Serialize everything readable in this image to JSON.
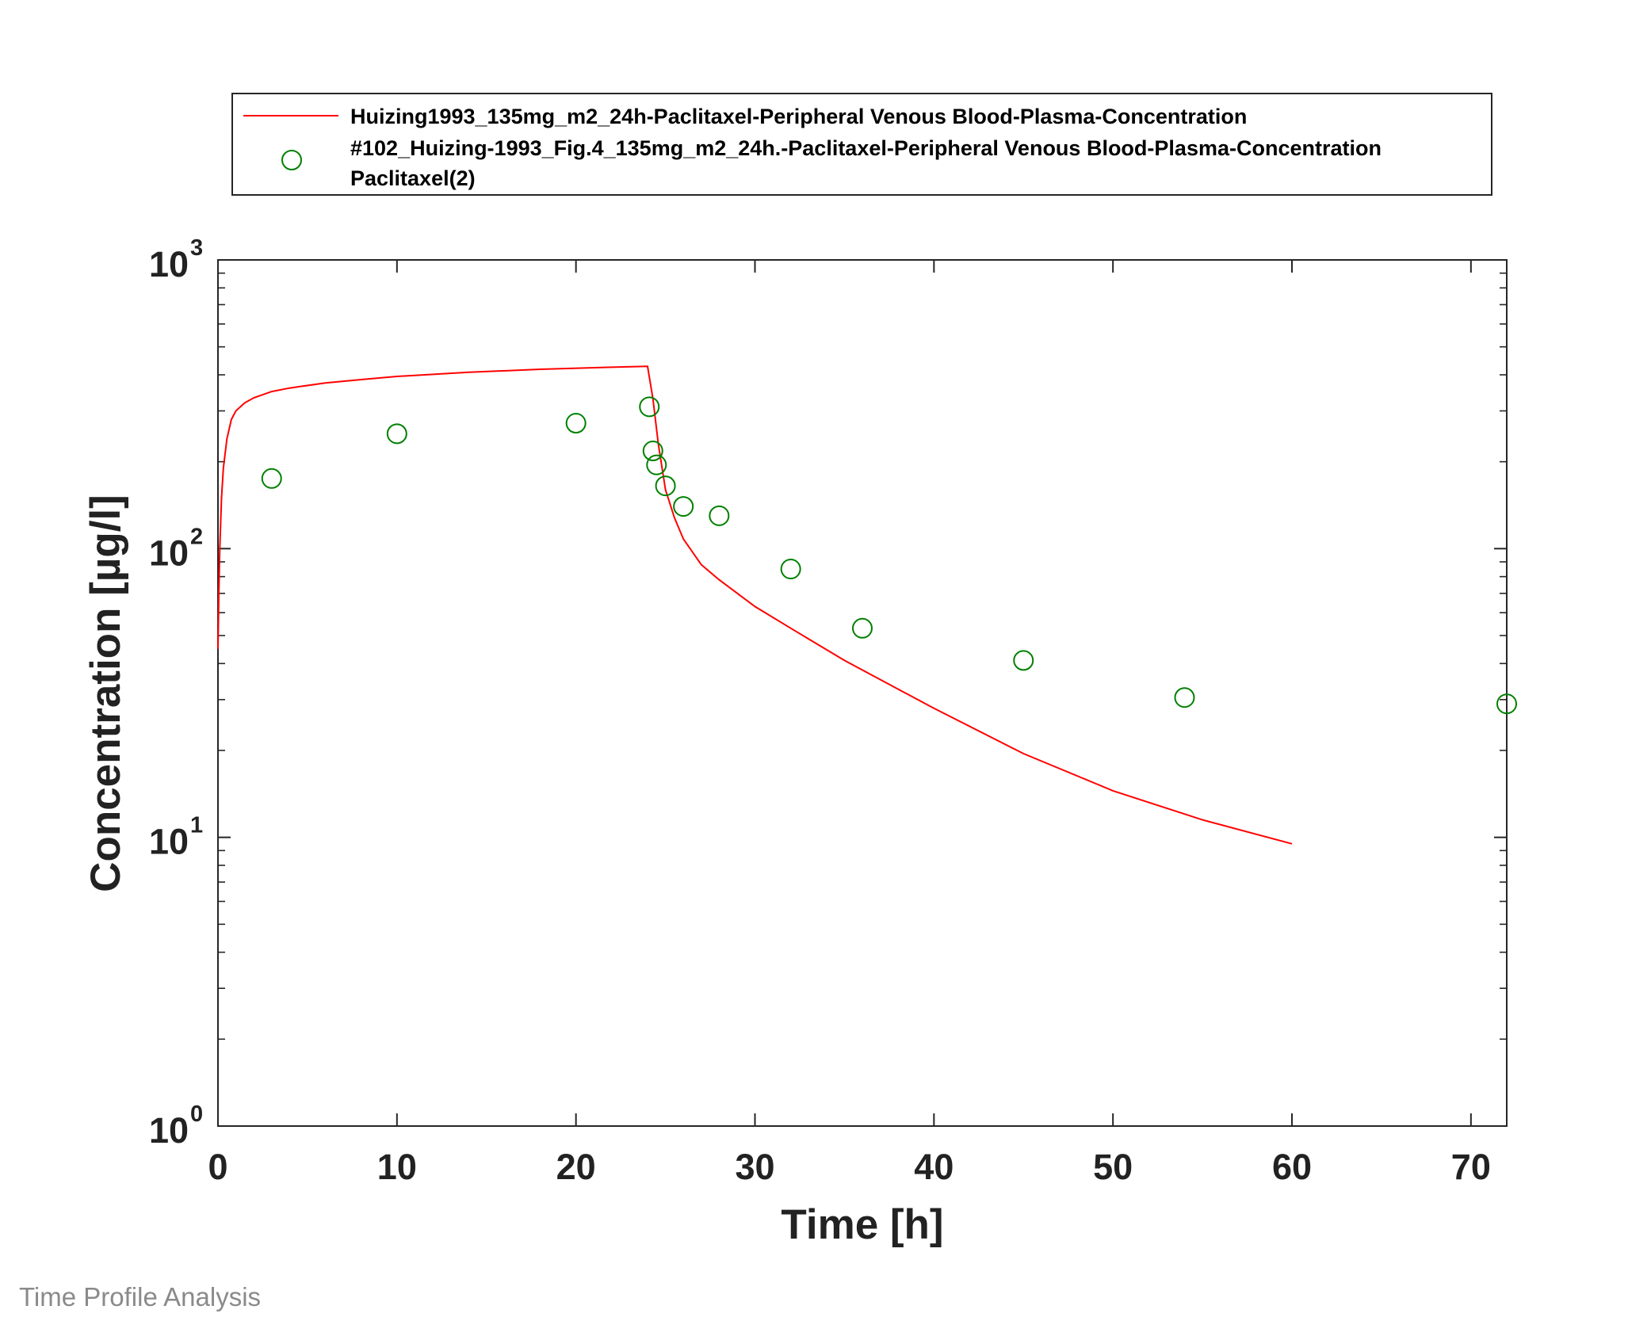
{
  "footer": "Time Profile Analysis",
  "colors": {
    "simulation": "#ff0000",
    "observed": "#008000",
    "axis": "#262626"
  },
  "chart_data": {
    "type": "line",
    "xlabel": "Time [h]",
    "ylabel": "Concentration [µg/l]",
    "xlim": [
      0,
      72
    ],
    "ylim": [
      1,
      1000
    ],
    "yscale": "log",
    "xticks": [
      "0",
      "10",
      "20",
      "30",
      "40",
      "50",
      "60",
      "70"
    ],
    "yticks": [
      {
        "base": "10",
        "exp": "0"
      },
      {
        "base": "10",
        "exp": "1"
      },
      {
        "base": "10",
        "exp": "2"
      },
      {
        "base": "10",
        "exp": "3"
      }
    ],
    "legend_position": "top, outside",
    "legend": [
      {
        "marker": "line",
        "label": "Huizing1993_135mg_m2_24h-Paclitaxel-Peripheral Venous Blood-Plasma-Concentration"
      },
      {
        "marker": "circle",
        "label": "#102_Huizing-1993_Fig.4_135mg_m2_24h.-Paclitaxel-Peripheral Venous Blood-Plasma-Concentration",
        "label2": "Paclitaxel(2)"
      }
    ],
    "series": [
      {
        "name": "Huizing1993_135mg_m2_24h-Paclitaxel-Peripheral Venous Blood-Plasma-Concentration",
        "style": "line",
        "x": [
          0,
          0.05,
          0.1,
          0.2,
          0.3,
          0.5,
          0.75,
          1,
          1.5,
          2,
          3,
          4,
          6,
          8,
          10,
          14,
          18,
          22,
          24,
          24.3,
          24.6,
          25,
          25.5,
          26,
          27,
          28,
          30,
          32,
          35,
          40,
          45,
          50,
          55,
          60
        ],
        "y": [
          45,
          70,
          100,
          150,
          190,
          240,
          280,
          300,
          320,
          333,
          350,
          360,
          375,
          385,
          395,
          408,
          418,
          425,
          428,
          330,
          230,
          160,
          128,
          108,
          88,
          78,
          63,
          53,
          41,
          28,
          19.5,
          14.5,
          11.5,
          9.5
        ]
      },
      {
        "name": "#102_Huizing-1993_Fig.4_135mg_m2_24h.-Paclitaxel-Peripheral Venous Blood-Plasma-Concentration",
        "style": "circle",
        "x": [
          3,
          10,
          20,
          24.1,
          24.3,
          24.5,
          25,
          26,
          28,
          32,
          36,
          45,
          54,
          72
        ],
        "y": [
          175,
          250,
          272,
          310,
          218,
          195,
          165,
          140,
          130,
          85,
          53,
          41,
          30.5,
          29
        ]
      }
    ]
  }
}
